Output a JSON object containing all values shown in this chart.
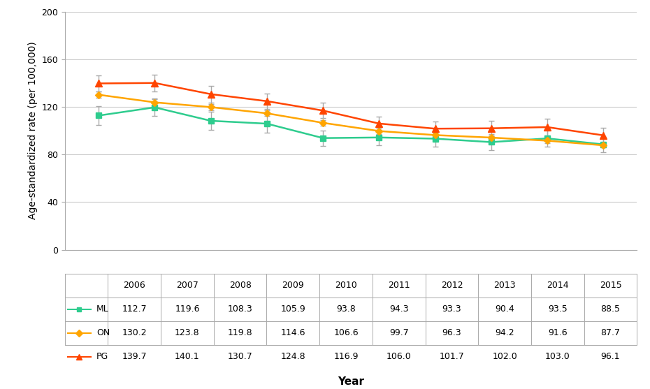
{
  "years": [
    2006,
    2007,
    2008,
    2009,
    2010,
    2011,
    2012,
    2013,
    2014,
    2015
  ],
  "ML": [
    112.7,
    119.6,
    108.3,
    105.9,
    93.8,
    94.3,
    93.3,
    90.4,
    93.5,
    88.5
  ],
  "ON": [
    130.2,
    123.8,
    119.8,
    114.6,
    106.6,
    99.7,
    96.3,
    94.2,
    91.6,
    87.7
  ],
  "PG": [
    139.7,
    140.1,
    130.7,
    124.8,
    116.9,
    106.0,
    101.7,
    102.0,
    103.0,
    96.1
  ],
  "ML_err": [
    8.0,
    7.5,
    7.5,
    7.5,
    6.5,
    6.5,
    6.5,
    6.5,
    7.0,
    6.5
  ],
  "ON_err": [
    2.5,
    2.5,
    2.5,
    2.5,
    2.5,
    2.5,
    2.0,
    2.0,
    2.0,
    2.0
  ],
  "PG_err": [
    7.0,
    7.0,
    7.0,
    6.5,
    6.5,
    6.0,
    6.0,
    6.5,
    7.0,
    6.5
  ],
  "ML_color": "#2ECC8E",
  "ON_color": "#FFA500",
  "PG_color": "#FF4500",
  "ylabel": "Age-standardized rate (per 100,000)",
  "xlabel": "Year",
  "ylim": [
    0,
    200
  ],
  "yticks": [
    0,
    40,
    80,
    120,
    160,
    200
  ],
  "background_color": "#ffffff",
  "grid_color": "#cccccc",
  "table_row_labels": [
    "ML",
    "ON",
    "PG"
  ],
  "table_year_labels": [
    "2006",
    "2007",
    "2008",
    "2009",
    "2010",
    "2011",
    "2012",
    "2013",
    "2014",
    "2015"
  ],
  "n_years": 10
}
